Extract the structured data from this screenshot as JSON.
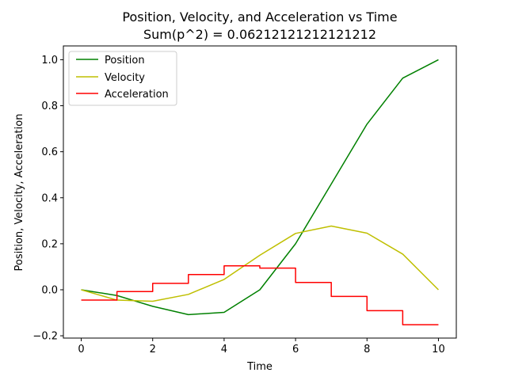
{
  "chart_data": {
    "type": "line",
    "title": "Position, Velocity, and Acceleration vs Time",
    "subtitle": "Sum(p^2) = 0.06212121212121212",
    "xlabel": "Time",
    "ylabel": "Position, Velocity, Acceleration",
    "xlim": [
      -0.5,
      10.5
    ],
    "ylim": [
      -0.21,
      1.06
    ],
    "x_ticks": [
      0,
      2,
      4,
      6,
      8,
      10
    ],
    "y_ticks": [
      -0.2,
      0.0,
      0.2,
      0.4,
      0.6,
      0.8,
      1.0
    ],
    "x_tick_labels": [
      "0",
      "2",
      "4",
      "6",
      "8",
      "10"
    ],
    "y_tick_labels": [
      "−0.2",
      "0.0",
      "0.2",
      "0.4",
      "0.6",
      "0.8",
      "1.0"
    ],
    "grid": false,
    "legend_position": "top-left",
    "series": [
      {
        "name": "Position",
        "color": "#008000",
        "drawstyle": "line",
        "x": [
          0,
          1,
          2,
          3,
          4,
          5,
          6,
          7,
          8,
          9,
          10
        ],
        "values": [
          0.0,
          -0.025,
          -0.072,
          -0.108,
          -0.098,
          0.0,
          0.2,
          0.46,
          0.72,
          0.92,
          1.0
        ]
      },
      {
        "name": "Velocity",
        "color": "#bfbf00",
        "drawstyle": "line",
        "x": [
          0,
          1,
          2,
          3,
          4,
          5,
          6,
          7,
          8,
          9,
          10
        ],
        "values": [
          0.0,
          -0.045,
          -0.05,
          -0.02,
          0.045,
          0.15,
          0.245,
          0.277,
          0.246,
          0.155,
          0.0
        ]
      },
      {
        "name": "Acceleration",
        "color": "#ff0000",
        "drawstyle": "steps-post",
        "x": [
          0,
          1,
          2,
          3,
          4,
          5,
          6,
          7,
          8,
          9,
          10
        ],
        "values": [
          -0.045,
          -0.008,
          0.028,
          0.066,
          0.104,
          0.094,
          0.032,
          -0.029,
          -0.091,
          -0.152,
          -0.152
        ]
      }
    ]
  }
}
